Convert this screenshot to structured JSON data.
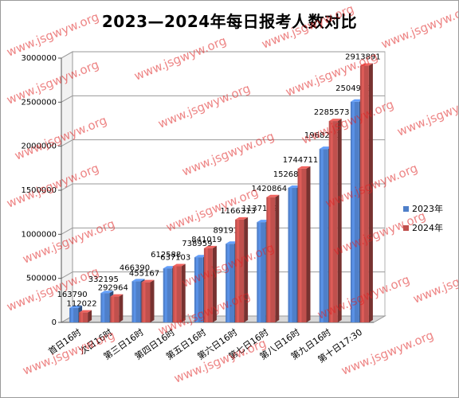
{
  "watermark_text": "www.jsgwyw.org",
  "chart_data": {
    "type": "bar",
    "title": "2023—2024年每日报考人数对比",
    "categories": [
      "首日16时",
      "次日16时",
      "第三日16时",
      "第四日16时",
      "第五日16时",
      "第六日16时",
      "第七日16时",
      "第八日16时",
      "第九日16时",
      "第十日17:30"
    ],
    "series": [
      {
        "name": "2023年",
        "color": "#4f7fc9",
        "values": [
          163790,
          332195,
          466390,
          612588,
          738959,
          891919,
          1137142,
          1526893,
          1968220,
          2504949
        ]
      },
      {
        "name": "2024年",
        "color": "#c0504d",
        "values": [
          112022,
          292964,
          455167,
          637103,
          841019,
          1166313,
          1420864,
          1744711,
          2285573,
          2913891
        ]
      }
    ],
    "ylim": [
      0,
      3000000
    ],
    "yticks": [
      "0",
      "500000",
      "1000000",
      "1500000",
      "2000000",
      "2500000",
      "3000000"
    ],
    "grid": true,
    "legend_position": "right"
  }
}
